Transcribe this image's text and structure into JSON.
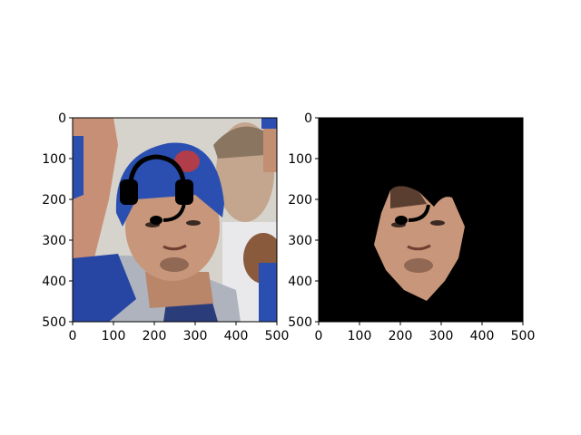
{
  "figure": {
    "panels": [
      {
        "id": "left",
        "content": "photo of a baseball player in a blue batting helmet with a drawn black headset overlay",
        "xticks": [
          "0",
          "100",
          "200",
          "300",
          "400",
          "500"
        ],
        "yticks": [
          "0",
          "100",
          "200",
          "300",
          "400",
          "500"
        ],
        "xlim": [
          0,
          500
        ],
        "ylim": [
          0,
          500
        ]
      },
      {
        "id": "right",
        "content": "segmented face region of the same photo on a black background, with the headset microphone overlay",
        "xticks": [
          "0",
          "100",
          "200",
          "300",
          "400",
          "500"
        ],
        "yticks": [
          "0",
          "100",
          "200",
          "300",
          "400",
          "500"
        ],
        "xlim": [
          0,
          500
        ],
        "ylim": [
          0,
          500
        ]
      }
    ],
    "colors": {
      "background_photo": "#d9d6cf",
      "helmet": "#2a4fb0",
      "jersey": "#aab0bb",
      "skin": "#c8967a",
      "mask_background": "#000000",
      "headset": "#000000"
    }
  }
}
